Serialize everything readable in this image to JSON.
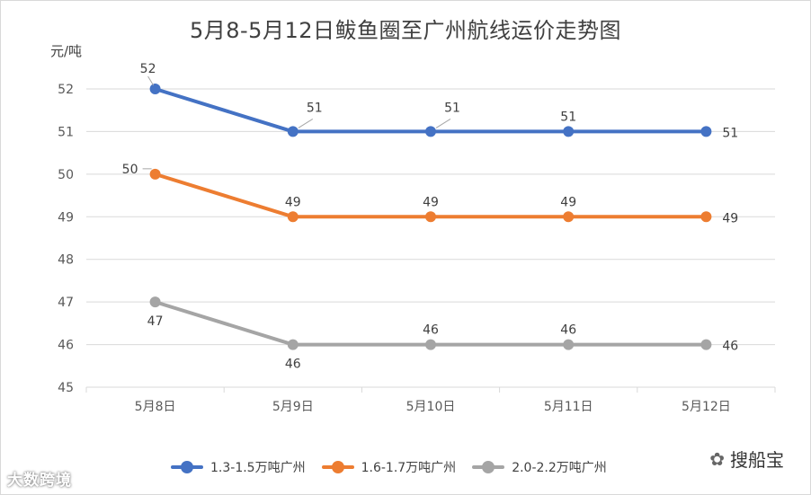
{
  "title": "5月8-5月12日鲅鱼圈至广州航线运价走势图",
  "unit": "元/吨",
  "watermark_left": "大数跨境",
  "watermark_right": "搜船宝",
  "chart_data": {
    "type": "line",
    "title": "5月8-5月12日鲅鱼圈至广州航线运价走势图",
    "ylabel": "元/吨",
    "xlabel": "",
    "categories": [
      "5月8日",
      "5月9日",
      "5月10日",
      "5月11日",
      "5月12日"
    ],
    "ylim": [
      45,
      52
    ],
    "yticks": [
      45,
      46,
      47,
      48,
      49,
      50,
      51,
      52
    ],
    "grid": true,
    "legend_position": "bottom",
    "series": [
      {
        "name": "1.3-1.5万吨广州",
        "color": "#4472C4",
        "values": [
          52,
          51,
          51,
          51,
          51
        ]
      },
      {
        "name": "1.6-1.7万吨广州",
        "color": "#ED7D31",
        "values": [
          50,
          49,
          49,
          49,
          49
        ]
      },
      {
        "name": "2.0-2.2万吨广州",
        "color": "#A5A5A5",
        "values": [
          47,
          46,
          46,
          46,
          46
        ]
      }
    ]
  }
}
